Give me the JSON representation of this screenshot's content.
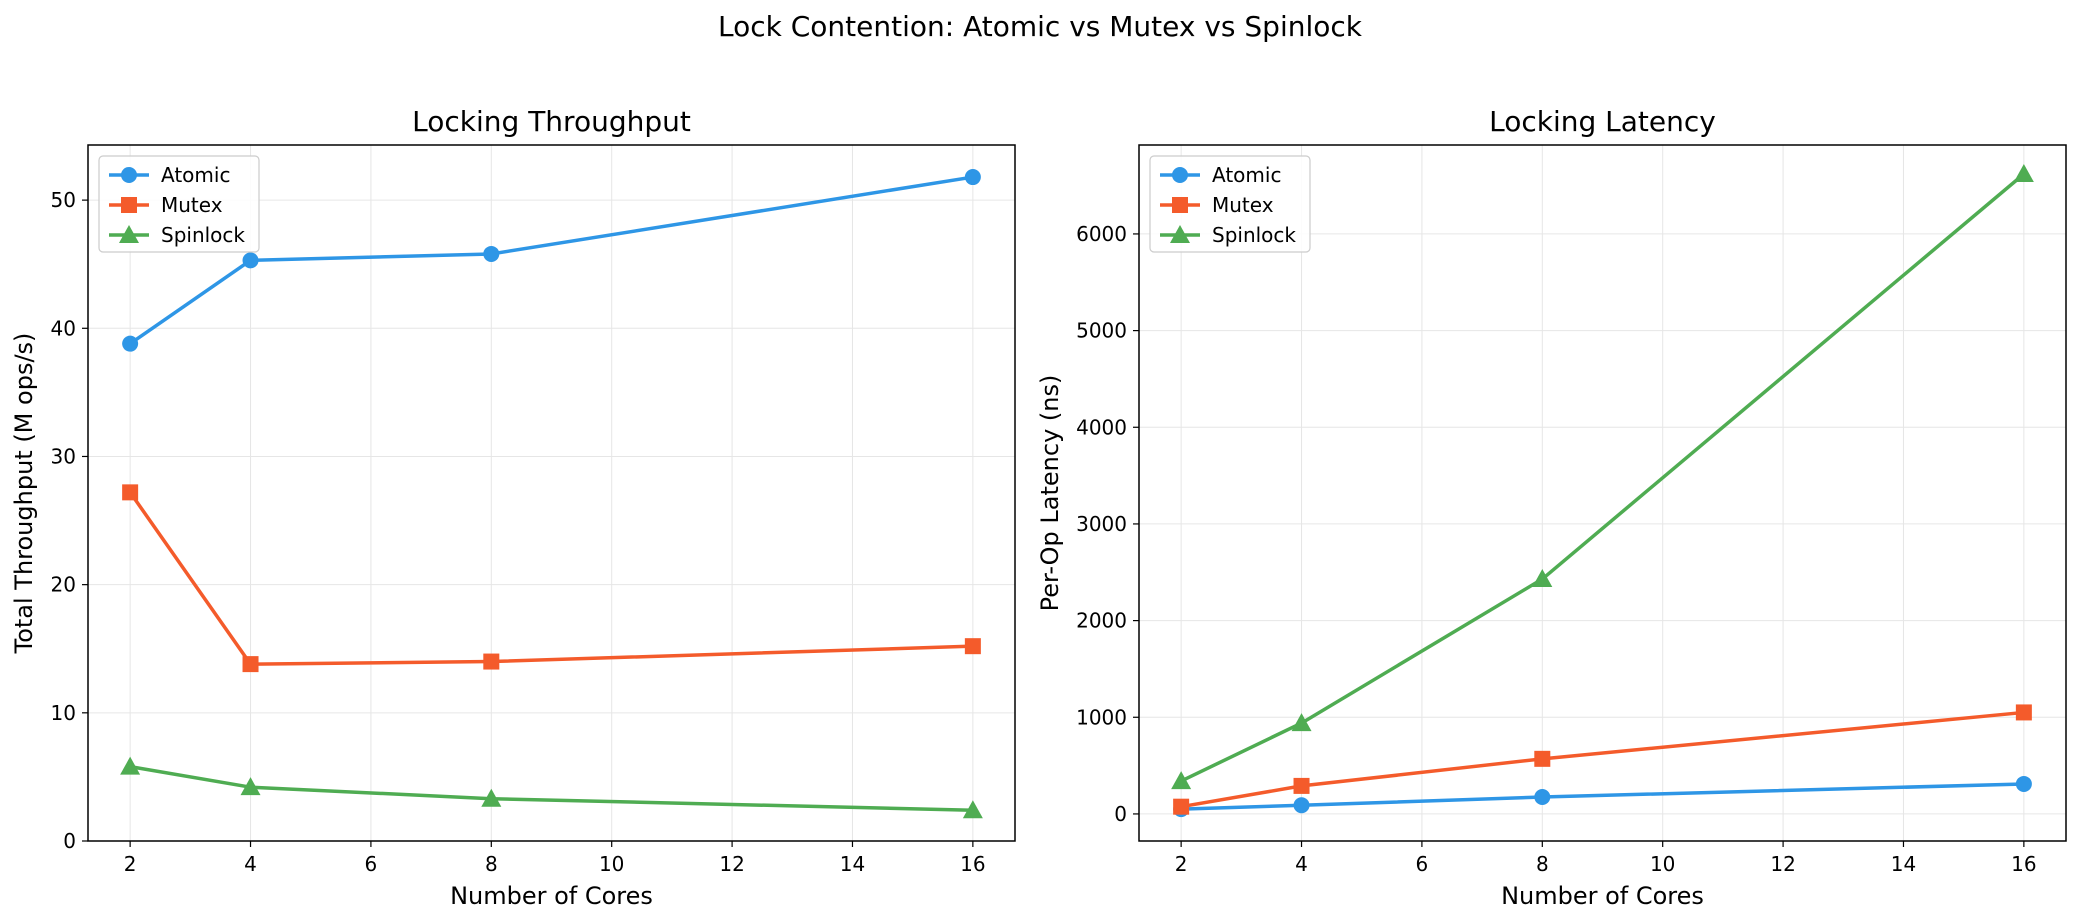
{
  "figure": {
    "suptitle": "Lock Contention: Atomic vs Mutex vs Spinlock"
  },
  "colors": {
    "Atomic": "#2e96e6",
    "Mutex": "#f45b2b",
    "Spinlock": "#4fac52",
    "grid": "#e6e6e6",
    "axes": "#000000"
  },
  "markers": {
    "Atomic": "circle",
    "Mutex": "square",
    "Spinlock": "triangle"
  },
  "chart_data": [
    {
      "type": "line",
      "title": "Locking Throughput",
      "xlabel": "Number of Cores",
      "ylabel": "Total Throughput (M ops/s)",
      "x": [
        2,
        4,
        8,
        16
      ],
      "xlim": [
        1.3,
        16.7
      ],
      "ylim": [
        0,
        54.3
      ],
      "xticks": [
        2,
        4,
        6,
        8,
        10,
        12,
        14,
        16
      ],
      "yticks": [
        0,
        10,
        20,
        30,
        40,
        50
      ],
      "grid": true,
      "legend": "upper left",
      "series": [
        {
          "name": "Atomic",
          "values": [
            38.8,
            45.3,
            45.8,
            51.8
          ]
        },
        {
          "name": "Mutex",
          "values": [
            27.2,
            13.8,
            14.0,
            15.2
          ]
        },
        {
          "name": "Spinlock",
          "values": [
            5.8,
            4.2,
            3.3,
            2.4
          ]
        }
      ]
    },
    {
      "type": "line",
      "title": "Locking Latency",
      "xlabel": "Number of Cores",
      "ylabel": "Per-Op Latency (ns)",
      "x": [
        2,
        4,
        8,
        16
      ],
      "xlim": [
        1.3,
        16.7
      ],
      "ylim": [
        -280,
        6920
      ],
      "xticks": [
        2,
        4,
        6,
        8,
        10,
        12,
        14,
        16
      ],
      "yticks": [
        0,
        1000,
        2000,
        3000,
        4000,
        5000,
        6000
      ],
      "grid": true,
      "legend": "upper left",
      "series": [
        {
          "name": "Atomic",
          "values": [
            50,
            90,
            175,
            310
          ]
        },
        {
          "name": "Mutex",
          "values": [
            75,
            290,
            570,
            1050
          ]
        },
        {
          "name": "Spinlock",
          "values": [
            340,
            940,
            2430,
            6620
          ]
        }
      ]
    }
  ]
}
